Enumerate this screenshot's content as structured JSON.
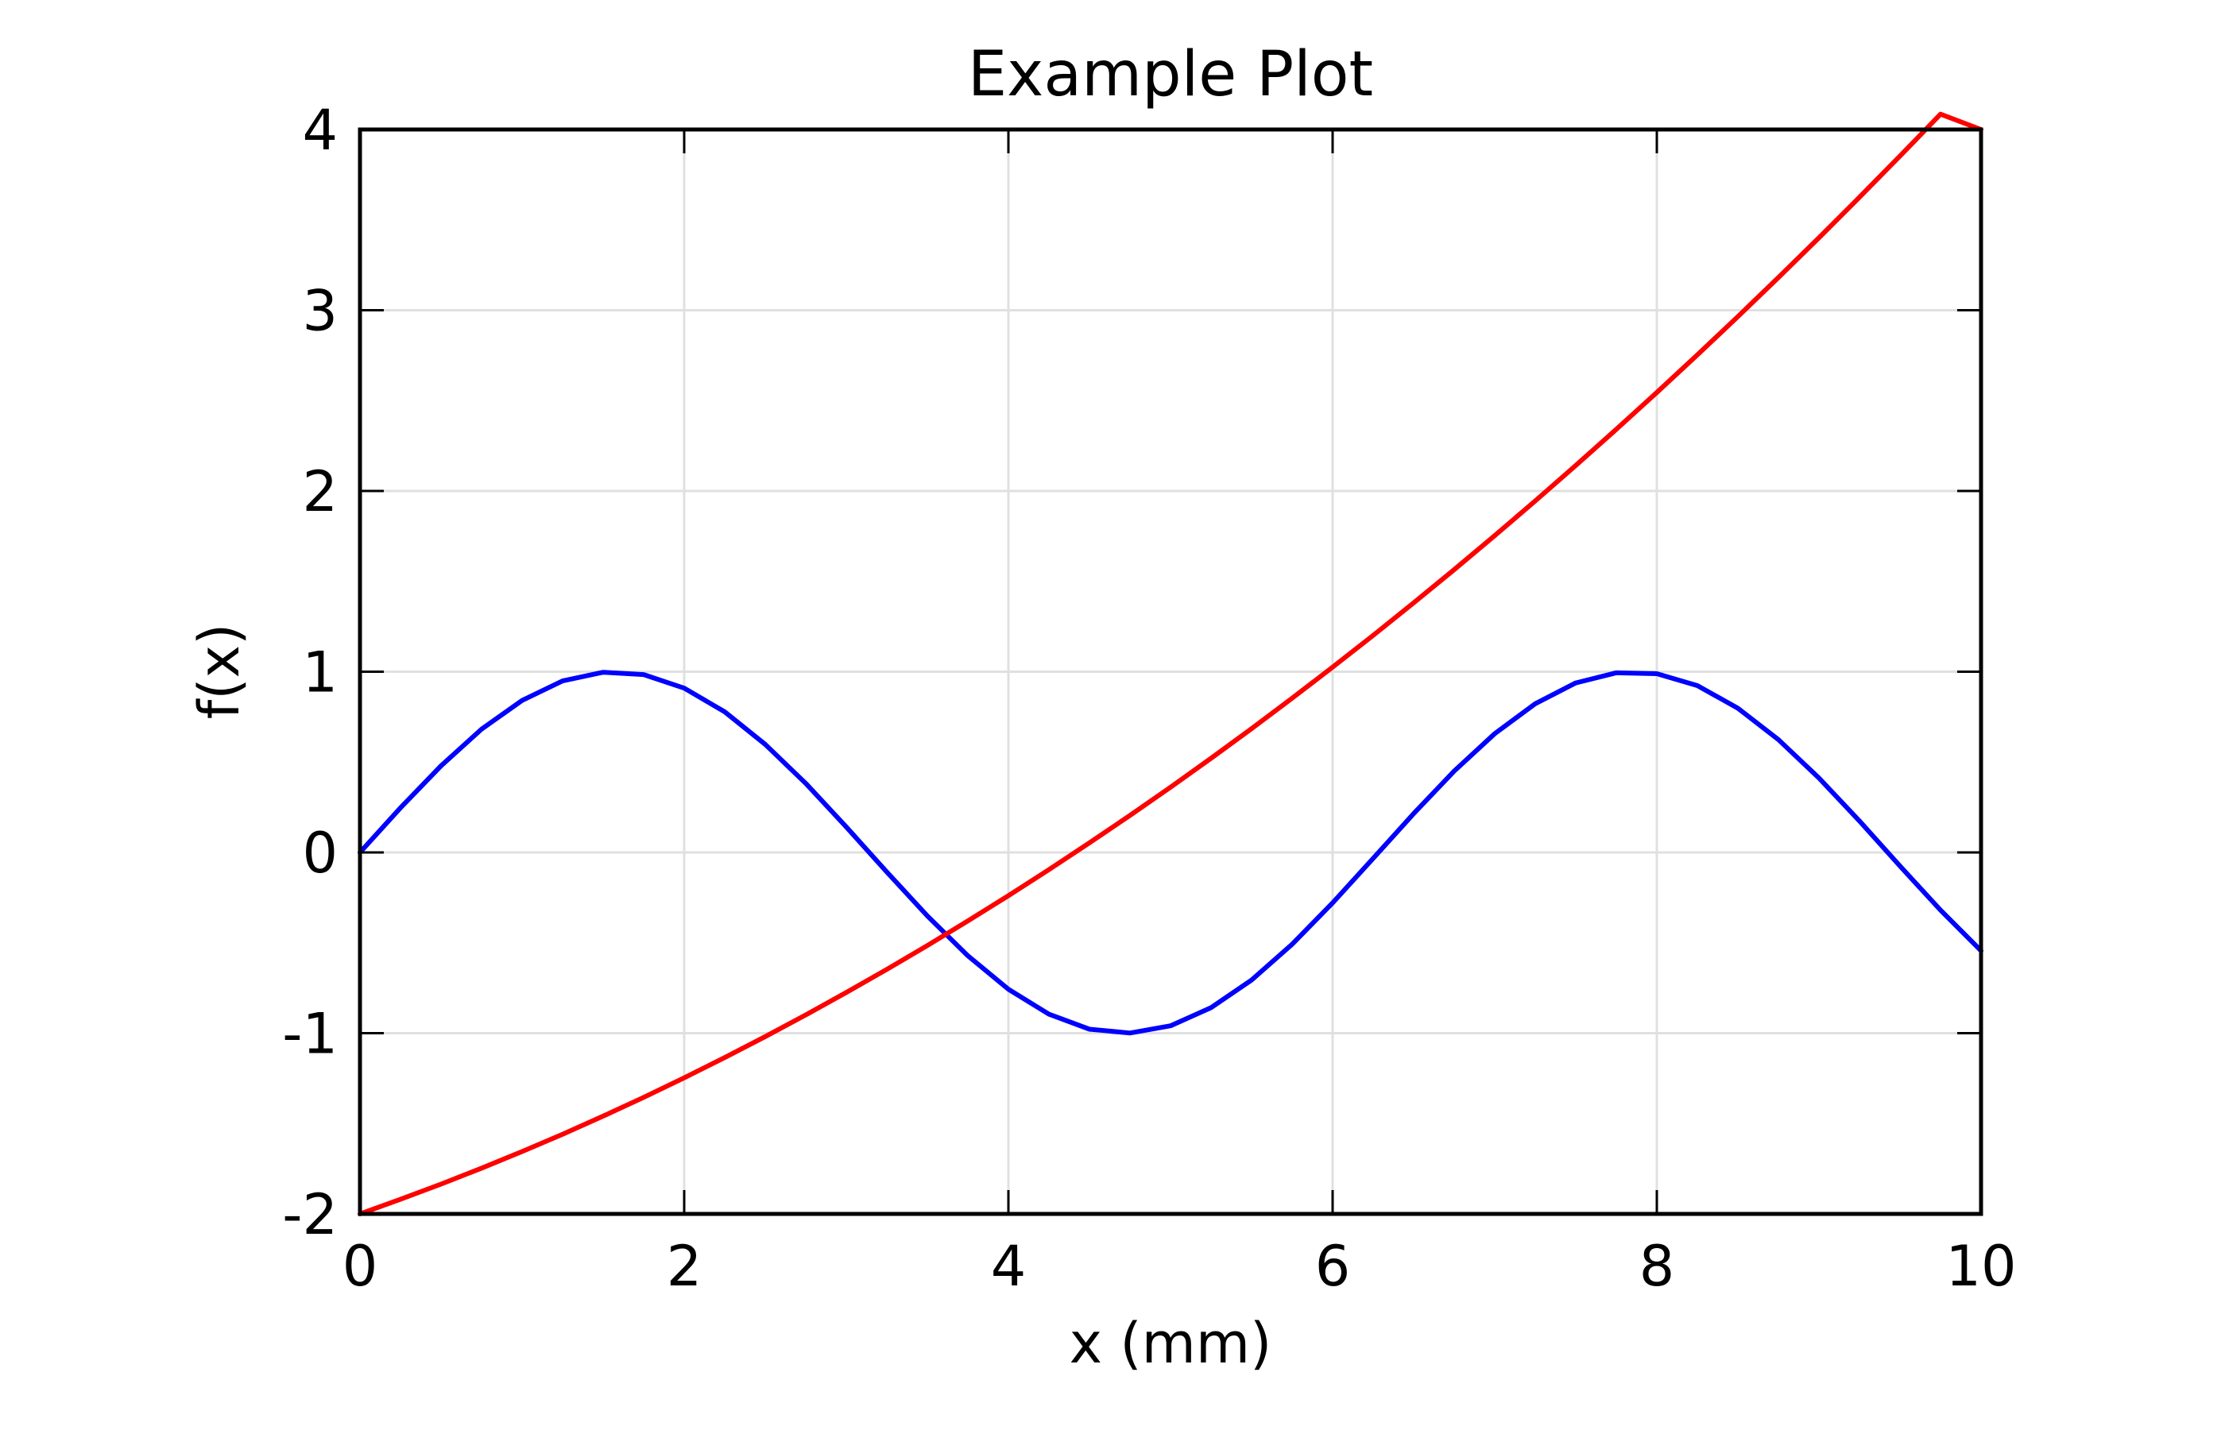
{
  "chart_data": {
    "type": "line",
    "title": "Example Plot",
    "xlabel": "x (mm)",
    "ylabel": "f(x)",
    "xlim": [
      0,
      10
    ],
    "ylim": [
      -2,
      4
    ],
    "x_ticks": [
      0,
      2,
      4,
      6,
      8,
      10
    ],
    "x_tick_labels": [
      "0",
      "2",
      "4",
      "6",
      "8",
      "10"
    ],
    "y_ticks": [
      -2,
      -1,
      0,
      1,
      2,
      3,
      4
    ],
    "y_tick_labels": [
      "-2",
      "-1",
      "0",
      "1",
      "2",
      "3",
      "4"
    ],
    "grid": true,
    "legend": false,
    "series": [
      {
        "color": "#0000ff",
        "x": [
          0,
          0.25,
          0.5,
          0.75,
          1,
          1.25,
          1.5,
          1.75,
          2,
          2.25,
          2.5,
          2.75,
          3,
          3.25,
          3.5,
          3.75,
          4,
          4.25,
          4.5,
          4.75,
          5,
          5.25,
          5.5,
          5.75,
          6,
          6.25,
          6.5,
          6.75,
          7,
          7.25,
          7.5,
          7.75,
          8,
          8.25,
          8.5,
          8.75,
          9,
          9.25,
          9.5,
          9.75,
          10
        ],
        "values": [
          0,
          0.247,
          0.479,
          0.682,
          0.841,
          0.949,
          0.997,
          0.984,
          0.909,
          0.778,
          0.598,
          0.382,
          0.141,
          -0.108,
          -0.351,
          -0.572,
          -0.757,
          -0.895,
          -0.978,
          -0.999,
          -0.959,
          -0.859,
          -0.706,
          -0.508,
          -0.279,
          -0.033,
          0.215,
          0.45,
          0.657,
          0.823,
          0.938,
          0.994,
          0.989,
          0.923,
          0.798,
          0.624,
          0.412,
          0.174,
          -0.075,
          -0.319,
          -0.544
        ]
      },
      {
        "color": "#ff0000",
        "x": [
          0,
          0.25,
          0.5,
          0.75,
          1,
          1.25,
          1.5,
          1.75,
          2,
          2.25,
          2.5,
          2.75,
          3,
          3.25,
          3.5,
          3.75,
          4,
          4.25,
          4.5,
          4.75,
          5,
          5.25,
          5.5,
          5.75,
          6,
          6.25,
          6.5,
          6.75,
          7,
          7.25,
          7.5,
          7.75,
          8,
          8.25,
          8.5,
          8.75,
          9,
          9.25,
          9.5,
          9.75,
          10
        ],
        "values": [
          -2,
          -1.919,
          -1.835,
          -1.747,
          -1.655,
          -1.559,
          -1.459,
          -1.355,
          -1.247,
          -1.135,
          -1.019,
          -0.899,
          -0.775,
          -0.647,
          -0.515,
          -0.379,
          -0.239,
          -0.095,
          0.053,
          0.205,
          0.361,
          0.521,
          0.685,
          0.853,
          1.025,
          1.201,
          1.381,
          1.565,
          1.753,
          1.945,
          2.141,
          2.341,
          2.545,
          2.753,
          2.965,
          3.181,
          3.401,
          3.625,
          3.853,
          4.085,
          4.0
        ]
      }
    ]
  }
}
